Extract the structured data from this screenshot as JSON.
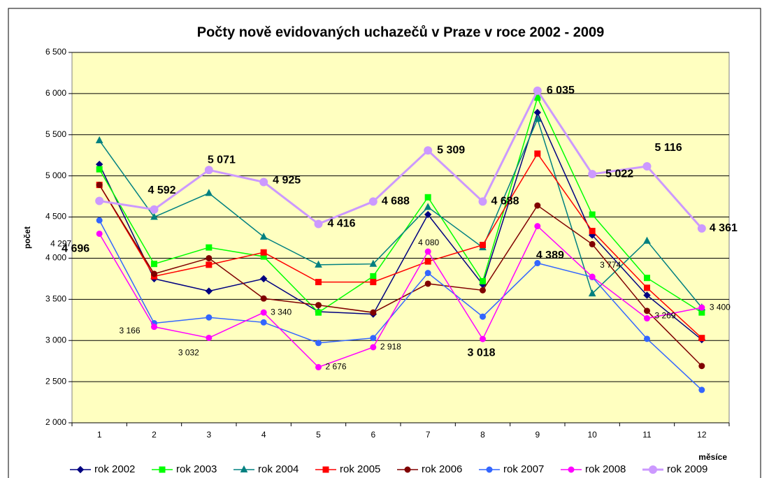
{
  "chart_data": {
    "type": "line",
    "title": "Počty nově evidovaných uchazečů v Praze v roce 2002 - 2009",
    "y_label": "počet",
    "x_label": "měsíce",
    "categories": [
      "1",
      "2",
      "3",
      "4",
      "5",
      "6",
      "7",
      "8",
      "9",
      "10",
      "11",
      "12"
    ],
    "ylim": [
      2000,
      6500
    ],
    "yticks": [
      {
        "value": 2000,
        "label": "2 000"
      },
      {
        "value": 2500,
        "label": "2 500"
      },
      {
        "value": 3000,
        "label": "3 000"
      },
      {
        "value": 3500,
        "label": "3 500"
      },
      {
        "value": 4000,
        "label": "4 000"
      },
      {
        "value": 4500,
        "label": "4 500"
      },
      {
        "value": 5000,
        "label": "5 000"
      },
      {
        "value": 5500,
        "label": "5 500"
      },
      {
        "value": 6000,
        "label": "6 000"
      },
      {
        "value": 6500,
        "label": "6 500"
      }
    ],
    "grid": true,
    "legend": "bottom",
    "series": [
      {
        "name": "rok 2002",
        "color": "#000080",
        "marker": "diamond",
        "values": [
          5140,
          3750,
          3600,
          3750,
          3350,
          3320,
          4530,
          3680,
          5770,
          4280,
          3550,
          3010
        ]
      },
      {
        "name": "rok 2003",
        "color": "#00FF00",
        "marker": "square",
        "values": [
          5080,
          3930,
          4130,
          4020,
          3340,
          3780,
          4740,
          3720,
          5950,
          4530,
          3760,
          3340
        ]
      },
      {
        "name": "rok 2004",
        "color": "#008080",
        "marker": "triangle",
        "values": [
          5430,
          4500,
          4790,
          4260,
          3920,
          3930,
          4620,
          4130,
          5690,
          3570,
          4210,
          3400
        ]
      },
      {
        "name": "rok 2005",
        "color": "#FF0000",
        "marker": "square",
        "values": [
          4890,
          3780,
          3920,
          4070,
          3710,
          3710,
          3960,
          4160,
          5270,
          4330,
          3640,
          3030
        ]
      },
      {
        "name": "rok 2006",
        "color": "#800000",
        "marker": "circle",
        "values": [
          4890,
          3810,
          4000,
          3510,
          3430,
          3340,
          3690,
          3610,
          4640,
          4170,
          3360,
          2690
        ]
      },
      {
        "name": "rok 2007",
        "color": "#3366FF",
        "marker": "circle",
        "values": [
          4460,
          3210,
          3280,
          3220,
          2970,
          3030,
          3820,
          3290,
          3940,
          3770,
          3020,
          2400
        ]
      },
      {
        "name": "rok 2008",
        "color": "#FF00FF",
        "marker": "circle",
        "values": [
          4297,
          3166,
          3032,
          3340,
          2676,
          2918,
          4080,
          3018,
          4389,
          3774,
          3269,
          3400
        ],
        "value_labels": [
          "4 297",
          "3 166",
          "3 032",
          "3 340",
          "2 676",
          "2 918",
          "4 080",
          "3 018",
          "4 389",
          "3 774",
          "3 269",
          "3 400"
        ]
      },
      {
        "name": "rok 2009",
        "color": "#CC99FF",
        "marker": "big-circle",
        "values": [
          4696,
          4592,
          5071,
          4925,
          4416,
          4688,
          5309,
          4688,
          6035,
          5022,
          5116,
          4361
        ],
        "value_labels": [
          "4 696",
          "4 592",
          "5 071",
          "4 925",
          "4 416",
          "4 688",
          "5 309",
          "4 688",
          "6 035",
          "5 022",
          "5 116",
          "4 361"
        ]
      }
    ]
  }
}
